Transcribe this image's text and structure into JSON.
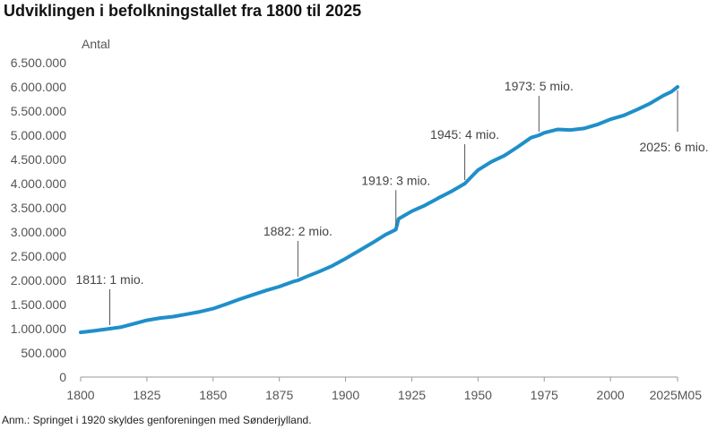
{
  "chart_data": {
    "type": "line",
    "title": "Udviklingen i befolkningstallet fra 1800 til 2025",
    "ylabel": "Antal",
    "xlabel": "",
    "note": "Anm.: Springet i 1920 skyldes genforeningen med Sønderjylland.",
    "xlim": [
      1800,
      2025.33
    ],
    "ylim": [
      0,
      6500000
    ],
    "grid": false,
    "line_color": "#1f8fc9",
    "y_ticks": [
      0,
      500000,
      1000000,
      1500000,
      2000000,
      2500000,
      3000000,
      3500000,
      4000000,
      4500000,
      5000000,
      5500000,
      6000000,
      6500000
    ],
    "y_tick_labels": [
      "0",
      "500.000",
      "1.000.000",
      "1.500.000",
      "2.000.000",
      "2.500.000",
      "3.000.000",
      "3.500.000",
      "4.000.000",
      "4.500.000",
      "5.000.000",
      "5.500.000",
      "6.000.000",
      "6.500.000"
    ],
    "x_ticks": [
      1800,
      1825,
      1850,
      1875,
      1900,
      1925,
      1950,
      1975,
      2000,
      2025.33
    ],
    "x_tick_labels": [
      "1800",
      "1825",
      "1850",
      "1875",
      "1900",
      "1925",
      "1950",
      "1975",
      "2000",
      "2025M05"
    ],
    "series": [
      {
        "x": [
          1800,
          1805,
          1811,
          1815,
          1820,
          1825,
          1830,
          1835,
          1840,
          1845,
          1850,
          1855,
          1860,
          1865,
          1870,
          1875,
          1880,
          1882,
          1885,
          1890,
          1895,
          1900,
          1905,
          1910,
          1915,
          1919,
          1920,
          1925,
          1930,
          1935,
          1940,
          1945,
          1950,
          1955,
          1960,
          1965,
          1970,
          1973,
          1975,
          1980,
          1985,
          1990,
          1995,
          2000,
          2005,
          2010,
          2015,
          2020,
          2023,
          2025.33
        ],
        "y": [
          925000,
          955000,
          1000000,
          1030000,
          1100000,
          1175000,
          1220000,
          1250000,
          1300000,
          1350000,
          1415000,
          1510000,
          1610000,
          1700000,
          1790000,
          1870000,
          1970000,
          2000000,
          2070000,
          2180000,
          2300000,
          2450000,
          2610000,
          2770000,
          2940000,
          3050000,
          3270000,
          3430000,
          3550000,
          3700000,
          3840000,
          4000000,
          4280000,
          4450000,
          4580000,
          4760000,
          4950000,
          5000000,
          5050000,
          5120000,
          5110000,
          5140000,
          5220000,
          5330000,
          5410000,
          5530000,
          5660000,
          5820000,
          5900000,
          6000000
        ]
      }
    ],
    "annotations": [
      {
        "text": "1811: 1 mio.",
        "x": 1811,
        "y": 1000000,
        "side": "above"
      },
      {
        "text": "1882: 2 mio.",
        "x": 1882,
        "y": 2000000,
        "side": "above"
      },
      {
        "text": "1919: 3 mio.",
        "x": 1919,
        "y": 3050000,
        "side": "above"
      },
      {
        "text": "1945: 4 mio.",
        "x": 1945,
        "y": 4000000,
        "side": "above"
      },
      {
        "text": "1973: 5 mio.",
        "x": 1973,
        "y": 5000000,
        "side": "above"
      },
      {
        "text": "2025: 6 mio.",
        "x": 2025.33,
        "y": 6000000,
        "side": "below"
      }
    ]
  }
}
